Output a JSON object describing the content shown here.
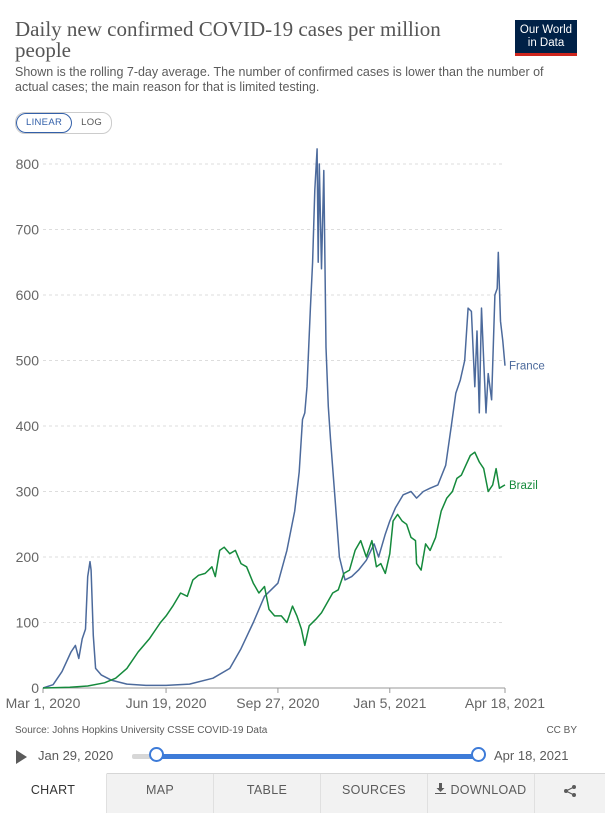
{
  "header": {
    "title": "Daily new confirmed COVID-19 cases per million people",
    "subtitle": "Shown is the rolling 7-day average. The number of confirmed cases is lower than the number of actual cases; the main reason for that is limited testing.",
    "logo_line1": "Our World",
    "logo_line2": "in Data"
  },
  "scale_toggle": {
    "linear": "LINEAR",
    "log": "LOG",
    "selected": "LINEAR"
  },
  "colors": {
    "france": "#4c6a9c",
    "brazil": "#158a3c",
    "accent": "#3d7bd8",
    "grid": "#dddddd"
  },
  "chart_data": {
    "type": "line",
    "title": "Daily new confirmed COVID-19 cases per million people",
    "ylim": [
      0,
      800
    ],
    "y_ticks": [
      0,
      100,
      200,
      300,
      400,
      500,
      600,
      700,
      800
    ],
    "x_range": [
      "2020-03-01",
      "2021-04-18"
    ],
    "x_ticks": [
      {
        "date": "2020-03-01",
        "label": "Mar 1, 2020"
      },
      {
        "date": "2020-06-19",
        "label": "Jun 19, 2020"
      },
      {
        "date": "2020-09-27",
        "label": "Sep 27, 2020"
      },
      {
        "date": "2021-01-05",
        "label": "Jan 5, 2021"
      },
      {
        "date": "2021-04-18",
        "label": "Apr 18, 2021"
      }
    ],
    "grid": true,
    "legend": "inline labels at line ends",
    "series": [
      {
        "name": "France",
        "points": [
          [
            "2020-03-01",
            0
          ],
          [
            "2020-03-10",
            5
          ],
          [
            "2020-03-18",
            25
          ],
          [
            "2020-03-26",
            55
          ],
          [
            "2020-03-30",
            65
          ],
          [
            "2020-04-02",
            45
          ],
          [
            "2020-04-05",
            75
          ],
          [
            "2020-04-08",
            90
          ],
          [
            "2020-04-10",
            170
          ],
          [
            "2020-04-12",
            193
          ],
          [
            "2020-04-13",
            180
          ],
          [
            "2020-04-15",
            80
          ],
          [
            "2020-04-17",
            30
          ],
          [
            "2020-04-22",
            20
          ],
          [
            "2020-05-01",
            12
          ],
          [
            "2020-05-15",
            6
          ],
          [
            "2020-06-01",
            4
          ],
          [
            "2020-06-19",
            4
          ],
          [
            "2020-07-10",
            6
          ],
          [
            "2020-07-31",
            15
          ],
          [
            "2020-08-15",
            30
          ],
          [
            "2020-08-25",
            60
          ],
          [
            "2020-09-05",
            100
          ],
          [
            "2020-09-15",
            140
          ],
          [
            "2020-09-27",
            160
          ],
          [
            "2020-10-05",
            210
          ],
          [
            "2020-10-12",
            270
          ],
          [
            "2020-10-16",
            330
          ],
          [
            "2020-10-19",
            410
          ],
          [
            "2020-10-21",
            420
          ],
          [
            "2020-10-23",
            460
          ],
          [
            "2020-10-26",
            580
          ],
          [
            "2020-10-28",
            650
          ],
          [
            "2020-10-30",
            760
          ],
          [
            "2020-11-01",
            823
          ],
          [
            "2020-11-02",
            650
          ],
          [
            "2020-11-03",
            800
          ],
          [
            "2020-11-05",
            640
          ],
          [
            "2020-11-07",
            790
          ],
          [
            "2020-11-09",
            520
          ],
          [
            "2020-11-11",
            430
          ],
          [
            "2020-11-13",
            380
          ],
          [
            "2020-11-17",
            290
          ],
          [
            "2020-11-21",
            200
          ],
          [
            "2020-11-26",
            165
          ],
          [
            "2020-12-02",
            170
          ],
          [
            "2020-12-08",
            180
          ],
          [
            "2020-12-15",
            195
          ],
          [
            "2020-12-22",
            220
          ],
          [
            "2020-12-26",
            200
          ],
          [
            "2021-01-01",
            235
          ],
          [
            "2021-01-05",
            255
          ],
          [
            "2021-01-10",
            275
          ],
          [
            "2021-01-17",
            295
          ],
          [
            "2021-01-24",
            300
          ],
          [
            "2021-01-29",
            290
          ],
          [
            "2021-02-04",
            300
          ],
          [
            "2021-02-10",
            305
          ],
          [
            "2021-02-17",
            310
          ],
          [
            "2021-02-24",
            340
          ],
          [
            "2021-03-01",
            400
          ],
          [
            "2021-03-05",
            450
          ],
          [
            "2021-03-09",
            470
          ],
          [
            "2021-03-13",
            500
          ],
          [
            "2021-03-16",
            580
          ],
          [
            "2021-03-19",
            575
          ],
          [
            "2021-03-22",
            460
          ],
          [
            "2021-03-24",
            545
          ],
          [
            "2021-03-26",
            420
          ],
          [
            "2021-03-28",
            580
          ],
          [
            "2021-03-30",
            500
          ],
          [
            "2021-04-01",
            420
          ],
          [
            "2021-04-03",
            480
          ],
          [
            "2021-04-06",
            440
          ],
          [
            "2021-04-09",
            600
          ],
          [
            "2021-04-11",
            610
          ],
          [
            "2021-04-12",
            665
          ],
          [
            "2021-04-14",
            560
          ],
          [
            "2021-04-16",
            530
          ],
          [
            "2021-04-18",
            492
          ]
        ]
      },
      {
        "name": "Brazil",
        "points": [
          [
            "2020-03-01",
            0
          ],
          [
            "2020-03-25",
            1
          ],
          [
            "2020-04-10",
            3
          ],
          [
            "2020-04-25",
            8
          ],
          [
            "2020-05-05",
            15
          ],
          [
            "2020-05-15",
            30
          ],
          [
            "2020-05-25",
            55
          ],
          [
            "2020-06-04",
            75
          ],
          [
            "2020-06-14",
            100
          ],
          [
            "2020-06-19",
            110
          ],
          [
            "2020-06-25",
            125
          ],
          [
            "2020-07-02",
            145
          ],
          [
            "2020-07-08",
            140
          ],
          [
            "2020-07-13",
            165
          ],
          [
            "2020-07-18",
            172
          ],
          [
            "2020-07-24",
            175
          ],
          [
            "2020-07-30",
            185
          ],
          [
            "2020-08-02",
            170
          ],
          [
            "2020-08-06",
            210
          ],
          [
            "2020-08-10",
            215
          ],
          [
            "2020-08-15",
            205
          ],
          [
            "2020-08-20",
            210
          ],
          [
            "2020-08-25",
            190
          ],
          [
            "2020-08-30",
            185
          ],
          [
            "2020-09-05",
            160
          ],
          [
            "2020-09-10",
            145
          ],
          [
            "2020-09-15",
            155
          ],
          [
            "2020-09-19",
            120
          ],
          [
            "2020-09-24",
            110
          ],
          [
            "2020-09-30",
            110
          ],
          [
            "2020-10-05",
            100
          ],
          [
            "2020-10-10",
            125
          ],
          [
            "2020-10-14",
            110
          ],
          [
            "2020-10-18",
            90
          ],
          [
            "2020-10-21",
            65
          ],
          [
            "2020-10-25",
            95
          ],
          [
            "2020-10-31",
            105
          ],
          [
            "2020-11-05",
            115
          ],
          [
            "2020-11-10",
            130
          ],
          [
            "2020-11-15",
            145
          ],
          [
            "2020-11-20",
            150
          ],
          [
            "2020-11-25",
            175
          ],
          [
            "2020-11-30",
            180
          ],
          [
            "2020-12-05",
            210
          ],
          [
            "2020-12-10",
            225
          ],
          [
            "2020-12-15",
            200
          ],
          [
            "2020-12-20",
            225
          ],
          [
            "2020-12-24",
            185
          ],
          [
            "2020-12-28",
            190
          ],
          [
            "2021-01-01",
            175
          ],
          [
            "2021-01-05",
            205
          ],
          [
            "2021-01-08",
            255
          ],
          [
            "2021-01-12",
            265
          ],
          [
            "2021-01-16",
            255
          ],
          [
            "2021-01-20",
            250
          ],
          [
            "2021-01-24",
            230
          ],
          [
            "2021-01-28",
            225
          ],
          [
            "2021-01-29",
            190
          ],
          [
            "2021-02-02",
            180
          ],
          [
            "2021-02-06",
            220
          ],
          [
            "2021-02-10",
            210
          ],
          [
            "2021-02-15",
            230
          ],
          [
            "2021-02-20",
            270
          ],
          [
            "2021-02-25",
            290
          ],
          [
            "2021-03-02",
            300
          ],
          [
            "2021-03-06",
            320
          ],
          [
            "2021-03-10",
            325
          ],
          [
            "2021-03-14",
            340
          ],
          [
            "2021-03-18",
            355
          ],
          [
            "2021-03-22",
            360
          ],
          [
            "2021-03-26",
            345
          ],
          [
            "2021-03-30",
            335
          ],
          [
            "2021-04-03",
            300
          ],
          [
            "2021-04-07",
            310
          ],
          [
            "2021-04-10",
            335
          ],
          [
            "2021-04-13",
            305
          ],
          [
            "2021-04-18",
            310
          ]
        ]
      }
    ],
    "end_labels": [
      {
        "series": "France",
        "text": "France"
      },
      {
        "series": "Brazil",
        "text": "Brazil"
      }
    ]
  },
  "footer": {
    "source": "Source: Johns Hopkins University CSSE COVID-19 Data",
    "license": "CC BY"
  },
  "timeline": {
    "start_label": "Jan 29, 2020",
    "end_label": "Apr 18, 2021"
  },
  "tabs": [
    {
      "label": "CHART",
      "active": true
    },
    {
      "label": "MAP"
    },
    {
      "label": "TABLE"
    },
    {
      "label": "SOURCES"
    },
    {
      "label": "DOWNLOAD"
    }
  ]
}
